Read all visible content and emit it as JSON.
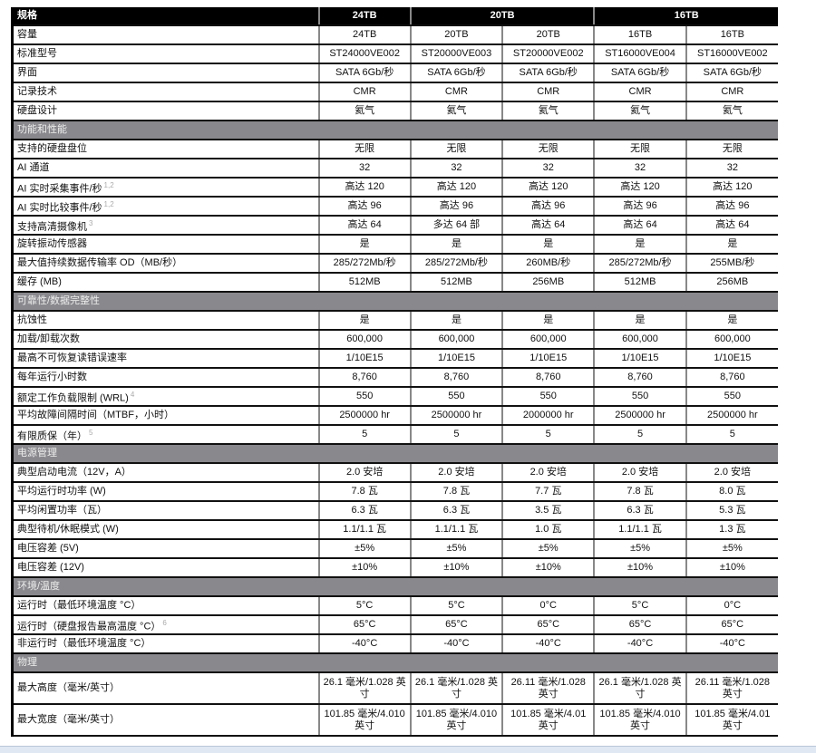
{
  "header": {
    "label": "规格",
    "groups": [
      {
        "label": "24TB",
        "span": 1
      },
      {
        "label": "20TB",
        "span": 2
      },
      {
        "label": "16TB",
        "span": 2
      }
    ]
  },
  "sections": [
    {
      "title": "",
      "rows": [
        {
          "label": "容量",
          "values": [
            "24TB",
            "20TB",
            "20TB",
            "16TB",
            "16TB"
          ]
        },
        {
          "label": "标准型号",
          "values": [
            "ST24000VE002",
            "ST20000VE003",
            "ST20000VE002",
            "ST16000VE004",
            "ST16000VE002"
          ]
        },
        {
          "label": "界面",
          "values": [
            "SATA 6Gb/秒",
            "SATA 6Gb/秒",
            "SATA 6Gb/秒",
            "SATA 6Gb/秒",
            "SATA 6Gb/秒"
          ]
        },
        {
          "label": "记录技术",
          "values": [
            "CMR",
            "CMR",
            "CMR",
            "CMR",
            "CMR"
          ]
        },
        {
          "label": "硬盘设计",
          "values": [
            "氦气",
            "氦气",
            "氦气",
            "氦气",
            "氦气"
          ]
        }
      ]
    },
    {
      "title": "功能和性能",
      "rows": [
        {
          "label": "支持的硬盘盘位",
          "values": [
            "无限",
            "无限",
            "无限",
            "无限",
            "无限"
          ]
        },
        {
          "label": "AI 通道",
          "values": [
            "32",
            "32",
            "32",
            "32",
            "32"
          ]
        },
        {
          "label": "AI 实时采集事件/秒",
          "note": "1,2",
          "values": [
            "高达 120",
            "高达 120",
            "高达 120",
            "高达 120",
            "高达 120"
          ]
        },
        {
          "label": "AI 实时比较事件/秒",
          "note": "1,2",
          "values": [
            "高达 96",
            "高达 96",
            "高达 96",
            "高达 96",
            "高达 96"
          ]
        },
        {
          "label": "支持高清摄像机",
          "note": "3",
          "values": [
            "高达 64",
            "多达 64 部",
            "高达 64",
            "高达 64",
            "高达 64"
          ]
        },
        {
          "label": "旋转振动传感器",
          "values": [
            "是",
            "是",
            "是",
            "是",
            "是"
          ]
        },
        {
          "label": "最大值持续数据传输率 OD（MB/秒）",
          "values": [
            "285/272Mb/秒",
            "285/272Mb/秒",
            "260MB/秒",
            "285/272Mb/秒",
            "255MB/秒"
          ]
        },
        {
          "label": "缓存 (MB)",
          "values": [
            "512MB",
            "512MB",
            "256MB",
            "512MB",
            "256MB"
          ]
        }
      ]
    },
    {
      "title": "可靠性/数据完整性",
      "rows": [
        {
          "label": "抗蚀性",
          "values": [
            "是",
            "是",
            "是",
            "是",
            "是"
          ]
        },
        {
          "label": "加载/卸载次数",
          "values": [
            "600,000",
            "600,000",
            "600,000",
            "600,000",
            "600,000"
          ]
        },
        {
          "label": "最高不可恢复读错误速率",
          "values": [
            "1/10E15",
            "1/10E15",
            "1/10E15",
            "1/10E15",
            "1/10E15"
          ]
        },
        {
          "label": "每年运行小时数",
          "values": [
            "8,760",
            "8,760",
            "8,760",
            "8,760",
            "8,760"
          ]
        },
        {
          "label": "额定工作负载限制 (WRL)",
          "note": "4",
          "values": [
            "550",
            "550",
            "550",
            "550",
            "550"
          ]
        },
        {
          "label": "平均故障间隔时间（MTBF，小时）",
          "values": [
            "2500000 hr",
            "2500000 hr",
            "2000000 hr",
            "2500000 hr",
            "2500000 hr"
          ]
        },
        {
          "label": "有限质保（年）",
          "note": "5",
          "values": [
            "5",
            "5",
            "5",
            "5",
            "5"
          ]
        }
      ]
    },
    {
      "title": "电源管理",
      "rows": [
        {
          "label": "典型启动电流（12V，A）",
          "values": [
            "2.0 安培",
            "2.0 安培",
            "2.0 安培",
            "2.0 安培",
            "2.0 安培"
          ]
        },
        {
          "label": "平均运行时功率 (W)",
          "values": [
            "7.8 瓦",
            "7.8 瓦",
            "7.7 瓦",
            "7.8 瓦",
            "8.0 瓦"
          ]
        },
        {
          "label": "平均闲置功率（瓦）",
          "values": [
            "6.3 瓦",
            "6.3 瓦",
            "3.5 瓦",
            "6.3 瓦",
            "5.3 瓦"
          ]
        },
        {
          "label": "典型待机/休眠模式 (W)",
          "values": [
            "1.1/1.1 瓦",
            "1.1/1.1 瓦",
            "1.0 瓦",
            "1.1/1.1 瓦",
            "1.3 瓦"
          ]
        },
        {
          "label": "电压容差 (5V)",
          "values": [
            "±5%",
            "±5%",
            "±5%",
            "±5%",
            "±5%"
          ]
        },
        {
          "label": "电压容差 (12V)",
          "values": [
            "±10%",
            "±10%",
            "±10%",
            "±10%",
            "±10%"
          ]
        }
      ]
    },
    {
      "title": "环境/温度",
      "rows": [
        {
          "label": "运行时（最低环境温度 °C）",
          "values": [
            "5°C",
            "5°C",
            "0°C",
            "5°C",
            "0°C"
          ]
        },
        {
          "label": "运行时（硬盘报告最高温度 °C）",
          "note": "6",
          "values": [
            "65°C",
            "65°C",
            "65°C",
            "65°C",
            "65°C"
          ]
        },
        {
          "label": "非运行时（最低环境温度 °C）",
          "values": [
            "-40°C",
            "-40°C",
            "-40°C",
            "-40°C",
            "-40°C"
          ]
        }
      ]
    },
    {
      "title": "物理",
      "rows": [
        {
          "label": "最大高度（毫米/英寸）",
          "tall": true,
          "values": [
            "26.1 毫米/1.028 英寸",
            "26.1 毫米/1.028 英寸",
            "26.11 毫米/1.028 英寸",
            "26.1 毫米/1.028 英寸",
            "26.11 毫米/1.028 英寸"
          ]
        },
        {
          "label": "最大宽度（毫米/英寸）",
          "tall": true,
          "values": [
            "101.85 毫米/4.010 英寸",
            "101.85 毫米/4.010 英寸",
            "101.85 毫米/4.01 英寸",
            "101.85 毫米/4.010 英寸",
            "101.85 毫米/4.01 英寸"
          ]
        }
      ]
    }
  ]
}
